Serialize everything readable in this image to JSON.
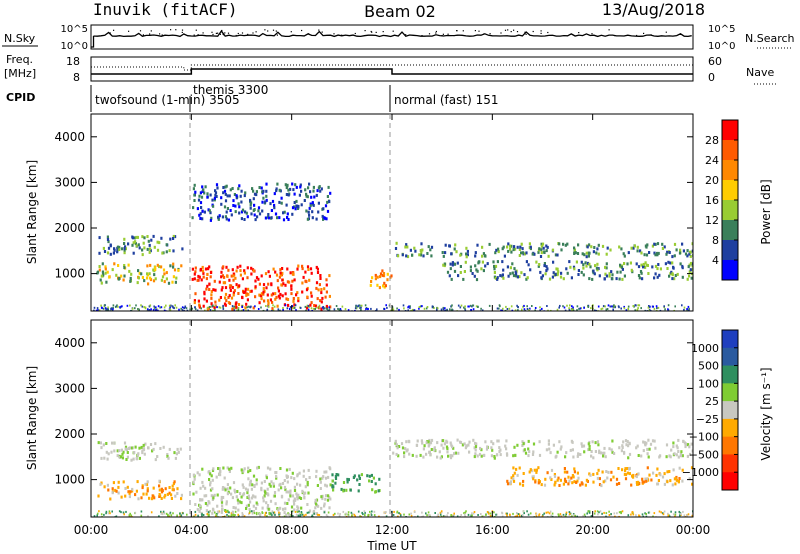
{
  "header": {
    "title": "Inuvik (fitACF)",
    "beam": "Beam 02",
    "date": "13/Aug/2018"
  },
  "top_panels": {
    "nsky_label": "N.Sky",
    "nsky_left_ticks": [
      "10^5",
      "10^0"
    ],
    "nsky_right_ticks": [
      "10^5",
      "10^0"
    ],
    "nsearch_label": "N.Search",
    "freq_label_line1": "Freq.",
    "freq_label_line2": "[MHz]",
    "freq_left_ticks": [
      "18",
      "8"
    ],
    "nave_right_ticks": [
      "60",
      "0"
    ],
    "nave_label": "Nave",
    "cpid_label": "CPID",
    "cpid_entries": [
      {
        "label": "twofsound (1-min) 3505"
      },
      {
        "label": "themis 3300"
      },
      {
        "label": "normal (fast) 151"
      }
    ]
  },
  "chart_data": [
    {
      "type": "heatmap",
      "name": "power",
      "ylabel": "Slant Range [km]",
      "ylim": [
        180,
        4500
      ],
      "yticks": [
        "1000",
        "2000",
        "3000",
        "4000"
      ],
      "xlim": [
        "00:00",
        "24:00"
      ],
      "colorbar_label": "Power [dB]",
      "colorbar_ticks": [
        "4",
        "8",
        "12",
        "16",
        "20",
        "24",
        "28"
      ],
      "colors": [
        "#0000ff",
        "#1f3f9f",
        "#3a7f5a",
        "#99cc33",
        "#ffcc00",
        "#ff8800",
        "#ff5a00",
        "#ff0000"
      ],
      "echo_regions": [
        {
          "t0": 0.2,
          "t1": 3.6,
          "r0": 1450,
          "r1": 1850,
          "level": "12-16"
        },
        {
          "t0": 0.2,
          "t1": 3.6,
          "r0": 800,
          "r1": 1250,
          "level": "16-28"
        },
        {
          "t0": 4.0,
          "t1": 9.5,
          "r0": 250,
          "r1": 1200,
          "level": "24-30"
        },
        {
          "t0": 4.0,
          "t1": 9.5,
          "r0": 2200,
          "r1": 3000,
          "level": "4-12"
        },
        {
          "t0": 11.0,
          "t1": 12.0,
          "r0": 700,
          "r1": 1100,
          "level": "20-28"
        },
        {
          "t0": 12.0,
          "t1": 24.0,
          "r0": 1400,
          "r1": 1700,
          "level": "4-16"
        },
        {
          "t0": 14.0,
          "t1": 24.0,
          "r0": 900,
          "r1": 1300,
          "level": "8-16"
        }
      ]
    },
    {
      "type": "heatmap",
      "name": "velocity",
      "ylabel": "Slant Range [km]",
      "ylim": [
        180,
        4500
      ],
      "yticks": [
        "1000",
        "2000",
        "3000",
        "4000"
      ],
      "xticks": [
        "00:00",
        "04:00",
        "08:00",
        "12:00",
        "16:00",
        "20:00",
        "00:00"
      ],
      "xlabel": "Time UT",
      "colorbar_label": "Velocity [m s⁻¹]",
      "colorbar_ticks": [
        "1000",
        "500",
        "100",
        "25",
        "−25",
        "−100",
        "−500",
        "−1000"
      ],
      "colors": [
        "#1f3fbf",
        "#2a5a9f",
        "#2f8f5f",
        "#7fcc33",
        "#c8c8c0",
        "#ffaa00",
        "#ff7700",
        "#ff3300",
        "#ff0000"
      ],
      "echo_regions": [
        {
          "t0": 0.2,
          "t1": 3.6,
          "r0": 1450,
          "r1": 1850,
          "level": "ground"
        },
        {
          "t0": 0.2,
          "t1": 3.6,
          "r0": 600,
          "r1": 1000,
          "level": "negative"
        },
        {
          "t0": 4.0,
          "t1": 9.5,
          "r0": 250,
          "r1": 1300,
          "level": "ground"
        },
        {
          "t0": 9.5,
          "t1": 11.5,
          "r0": 750,
          "r1": 1150,
          "level": "positive"
        },
        {
          "t0": 12.0,
          "t1": 24.0,
          "r0": 1500,
          "r1": 1900,
          "level": "ground"
        },
        {
          "t0": 16.5,
          "t1": 24.0,
          "r0": 900,
          "r1": 1300,
          "level": "negative"
        }
      ]
    }
  ]
}
